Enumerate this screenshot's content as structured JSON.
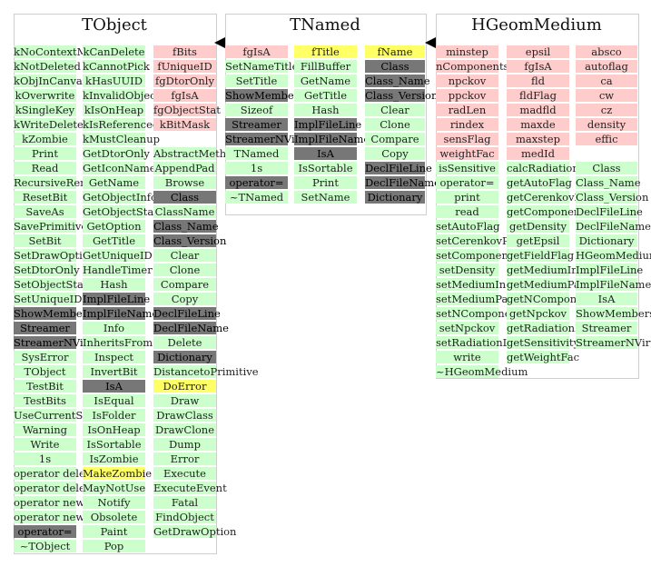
{
  "panels": [
    {
      "title": "TObject",
      "columns": [
        {
          "items": [
            [
              "kNoContextMenu",
              "g"
            ],
            [
              "kNotDeleted",
              "g"
            ],
            [
              "kObjInCanvas",
              "g"
            ],
            [
              "kOverwrite",
              "g"
            ],
            [
              "kSingleKey",
              "g"
            ],
            [
              "kWriteDelete",
              "g"
            ],
            [
              "kZombie",
              "g"
            ],
            [
              "Print",
              "g"
            ],
            [
              "Read",
              "g"
            ],
            [
              "RecursiveRemove",
              "g"
            ],
            [
              "ResetBit",
              "g"
            ],
            [
              "SaveAs",
              "g"
            ],
            [
              "SavePrimitive",
              "g"
            ],
            [
              "SetBit",
              "g"
            ],
            [
              "SetDrawOption",
              "g"
            ],
            [
              "SetDtorOnly",
              "g"
            ],
            [
              "SetObjectStat",
              "g"
            ],
            [
              "SetUniqueID",
              "g"
            ],
            [
              "ShowMembers",
              "d"
            ],
            [
              "Streamer",
              "d"
            ],
            [
              "StreamerNVirtual",
              "d"
            ],
            [
              "SysError",
              "g"
            ],
            [
              "TObject",
              "g"
            ],
            [
              "TestBit",
              "g"
            ],
            [
              "TestBits",
              "g"
            ],
            [
              "UseCurrentStyle",
              "g"
            ],
            [
              "Warning",
              "g"
            ],
            [
              "Write",
              "g"
            ],
            [
              "1s",
              "g"
            ],
            [
              "operator delete",
              "g"
            ],
            [
              "operator delete[]",
              "g"
            ],
            [
              "operator new",
              "g"
            ],
            [
              "operator new[]",
              "g"
            ],
            [
              "operator=",
              "d"
            ],
            [
              "~TObject",
              "g"
            ]
          ]
        },
        {
          "items": [
            [
              "kCanDelete",
              "g"
            ],
            [
              "kCannotPick",
              "g"
            ],
            [
              "kHasUUID",
              "g"
            ],
            [
              "kInvalidObject",
              "g"
            ],
            [
              "kIsOnHeap",
              "g"
            ],
            [
              "kIsReferenced",
              "g"
            ],
            [
              "kMustCleanup",
              "g"
            ],
            [
              "GetDtorOnly",
              "g"
            ],
            [
              "GetIconName",
              "g"
            ],
            [
              "GetName",
              "g"
            ],
            [
              "GetObjectInfo",
              "g"
            ],
            [
              "GetObjectStat",
              "g"
            ],
            [
              "GetOption",
              "g"
            ],
            [
              "GetTitle",
              "g"
            ],
            [
              "GetUniqueID",
              "g"
            ],
            [
              "HandleTimer",
              "g"
            ],
            [
              "Hash",
              "g"
            ],
            [
              "ImplFileLine",
              "d"
            ],
            [
              "ImplFileName",
              "d"
            ],
            [
              "Info",
              "g"
            ],
            [
              "InheritsFrom",
              "g"
            ],
            [
              "Inspect",
              "g"
            ],
            [
              "InvertBit",
              "g"
            ],
            [
              "IsA",
              "d"
            ],
            [
              "IsEqual",
              "g"
            ],
            [
              "IsFolder",
              "g"
            ],
            [
              "IsOnHeap",
              "g"
            ],
            [
              "IsSortable",
              "g"
            ],
            [
              "IsZombie",
              "g"
            ],
            [
              "MakeZombie",
              "y"
            ],
            [
              "MayNotUse",
              "g"
            ],
            [
              "Notify",
              "g"
            ],
            [
              "Obsolete",
              "g"
            ],
            [
              "Paint",
              "g"
            ],
            [
              "Pop",
              "g"
            ]
          ]
        },
        {
          "items": [
            [
              "fBits",
              "r"
            ],
            [
              "fUniqueID",
              "r"
            ],
            [
              "fgDtorOnly",
              "r"
            ],
            [
              "fgIsA",
              "r"
            ],
            [
              "fgObjectStat",
              "r"
            ],
            [
              "kBitMask",
              "r"
            ],
            [
              "",
              "n"
            ],
            [
              "AbstractMethod",
              "g"
            ],
            [
              "AppendPad",
              "g"
            ],
            [
              "Browse",
              "g"
            ],
            [
              "Class",
              "d"
            ],
            [
              "ClassName",
              "g"
            ],
            [
              "Class_Name",
              "d"
            ],
            [
              "Class_Version",
              "d"
            ],
            [
              "Clear",
              "g"
            ],
            [
              "Clone",
              "g"
            ],
            [
              "Compare",
              "g"
            ],
            [
              "Copy",
              "g"
            ],
            [
              "DeclFileLine",
              "d"
            ],
            [
              "DeclFileName",
              "d"
            ],
            [
              "Delete",
              "g"
            ],
            [
              "Dictionary",
              "d"
            ],
            [
              "DistancetoPrimitive",
              "g"
            ],
            [
              "DoError",
              "y"
            ],
            [
              "Draw",
              "g"
            ],
            [
              "DrawClass",
              "g"
            ],
            [
              "DrawClone",
              "g"
            ],
            [
              "Dump",
              "g"
            ],
            [
              "Error",
              "g"
            ],
            [
              "Execute",
              "g"
            ],
            [
              "ExecuteEvent",
              "g"
            ],
            [
              "Fatal",
              "g"
            ],
            [
              "FindObject",
              "g"
            ],
            [
              "GetDrawOption",
              "g"
            ]
          ]
        }
      ]
    },
    {
      "title": "TNamed",
      "columns": [
        {
          "items": [
            [
              "fgIsA",
              "r"
            ],
            [
              "SetNameTitle",
              "g"
            ],
            [
              "SetTitle",
              "g"
            ],
            [
              "ShowMembers",
              "d"
            ],
            [
              "Sizeof",
              "g"
            ],
            [
              "Streamer",
              "d"
            ],
            [
              "StreamerNVirtual",
              "d"
            ],
            [
              "TNamed",
              "g"
            ],
            [
              "1s",
              "g"
            ],
            [
              "operator=",
              "d"
            ],
            [
              "~TNamed",
              "g"
            ]
          ]
        },
        {
          "items": [
            [
              "fTitle",
              "y"
            ],
            [
              "FillBuffer",
              "g"
            ],
            [
              "GetName",
              "g"
            ],
            [
              "GetTitle",
              "g"
            ],
            [
              "Hash",
              "g"
            ],
            [
              "ImplFileLine",
              "d"
            ],
            [
              "ImplFileName",
              "d"
            ],
            [
              "IsA",
              "d"
            ],
            [
              "IsSortable",
              "g"
            ],
            [
              "Print",
              "g"
            ],
            [
              "SetName",
              "g"
            ]
          ]
        },
        {
          "items": [
            [
              "fName",
              "y"
            ],
            [
              "Class",
              "d"
            ],
            [
              "Class_Name",
              "d"
            ],
            [
              "Class_Version",
              "d"
            ],
            [
              "Clear",
              "g"
            ],
            [
              "Clone",
              "g"
            ],
            [
              "Compare",
              "g"
            ],
            [
              "Copy",
              "g"
            ],
            [
              "DeclFileLine",
              "d"
            ],
            [
              "DeclFileName",
              "d"
            ],
            [
              "Dictionary",
              "d"
            ]
          ]
        }
      ]
    },
    {
      "title": "HGeomMedium",
      "columns": [
        {
          "items": [
            [
              "minstep",
              "r"
            ],
            [
              "nComponents",
              "r"
            ],
            [
              "npckov",
              "r"
            ],
            [
              "ppckov",
              "r"
            ],
            [
              "radLen",
              "r"
            ],
            [
              "rindex",
              "r"
            ],
            [
              "sensFlag",
              "r"
            ],
            [
              "weightFac",
              "r"
            ],
            [
              "isSensitive",
              "g"
            ],
            [
              "operator=",
              "g"
            ],
            [
              "print",
              "g"
            ],
            [
              "read",
              "g"
            ],
            [
              "setAutoFlag",
              "g"
            ],
            [
              "setCerenkovPar",
              "g"
            ],
            [
              "setComponent",
              "g"
            ],
            [
              "setDensity",
              "g"
            ],
            [
              "setMediumIndex",
              "g"
            ],
            [
              "setMediumPar",
              "g"
            ],
            [
              "setNComponents",
              "g"
            ],
            [
              "setNpckov",
              "g"
            ],
            [
              "setRadiationLength",
              "g"
            ],
            [
              "write",
              "g"
            ],
            [
              "~HGeomMedium",
              "g"
            ]
          ]
        },
        {
          "items": [
            [
              "epsil",
              "r"
            ],
            [
              "fgIsA",
              "r"
            ],
            [
              "fld",
              "r"
            ],
            [
              "fldFlag",
              "r"
            ],
            [
              "madfld",
              "r"
            ],
            [
              "maxde",
              "r"
            ],
            [
              "maxstep",
              "r"
            ],
            [
              "medId",
              "r"
            ],
            [
              "calcRadiationLength",
              "g"
            ],
            [
              "getAutoFlag",
              "g"
            ],
            [
              "getCerenkovPar",
              "g"
            ],
            [
              "getComponent",
              "g"
            ],
            [
              "getDensity",
              "g"
            ],
            [
              "getEpsil",
              "g"
            ],
            [
              "getFieldFlag",
              "g"
            ],
            [
              "getMediumIndex",
              "g"
            ],
            [
              "getMediumPar",
              "g"
            ],
            [
              "getNComponents",
              "g"
            ],
            [
              "getNpckov",
              "g"
            ],
            [
              "getRadiationLength",
              "g"
            ],
            [
              "getSensitivityFlag",
              "g"
            ],
            [
              "getWeightFac",
              "g"
            ]
          ]
        },
        {
          "items": [
            [
              "absco",
              "r"
            ],
            [
              "autoflag",
              "r"
            ],
            [
              "ca",
              "r"
            ],
            [
              "cw",
              "r"
            ],
            [
              "cz",
              "r"
            ],
            [
              "density",
              "r"
            ],
            [
              "effic",
              "r"
            ],
            [
              "",
              "n"
            ],
            [
              "Class",
              "g"
            ],
            [
              "Class_Name",
              "g"
            ],
            [
              "Class_Version",
              "g"
            ],
            [
              "DeclFileLine",
              "g"
            ],
            [
              "DeclFileName",
              "g"
            ],
            [
              "Dictionary",
              "g"
            ],
            [
              "HGeomMedium",
              "g"
            ],
            [
              "ImplFileLine",
              "g"
            ],
            [
              "ImplFileName",
              "g"
            ],
            [
              "IsA",
              "g"
            ],
            [
              "ShowMembers",
              "g"
            ],
            [
              "Streamer",
              "g"
            ],
            [
              "StreamerNVirtual",
              "g"
            ]
          ]
        }
      ]
    }
  ]
}
